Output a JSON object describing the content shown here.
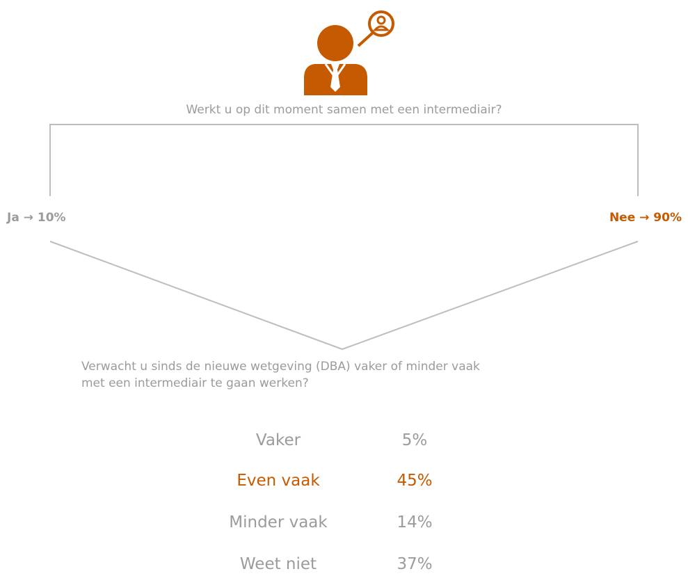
{
  "question": "Werkt u op dit moment samen met een intermediair?",
  "answers": [
    {
      "text": "Ja → 10%",
      "highlight": false
    },
    {
      "text": "Nee → 90%",
      "highlight": true
    }
  ],
  "followup": {
    "lines": [
      "Verwacht u sinds de nieuwe wetgeving (DBA) vaker of minder vaak",
      "met een intermediair te gaan werken?"
    ]
  },
  "results": {
    "rows": [
      {
        "label": "Vaker",
        "value": "5%",
        "highlight": false
      },
      {
        "label": "Even vaak",
        "value": "45%",
        "highlight": true
      },
      {
        "label": "Minder vaak",
        "value": "14%",
        "highlight": false
      },
      {
        "label": "Weet niet",
        "value": "37%",
        "highlight": false
      }
    ]
  }
}
